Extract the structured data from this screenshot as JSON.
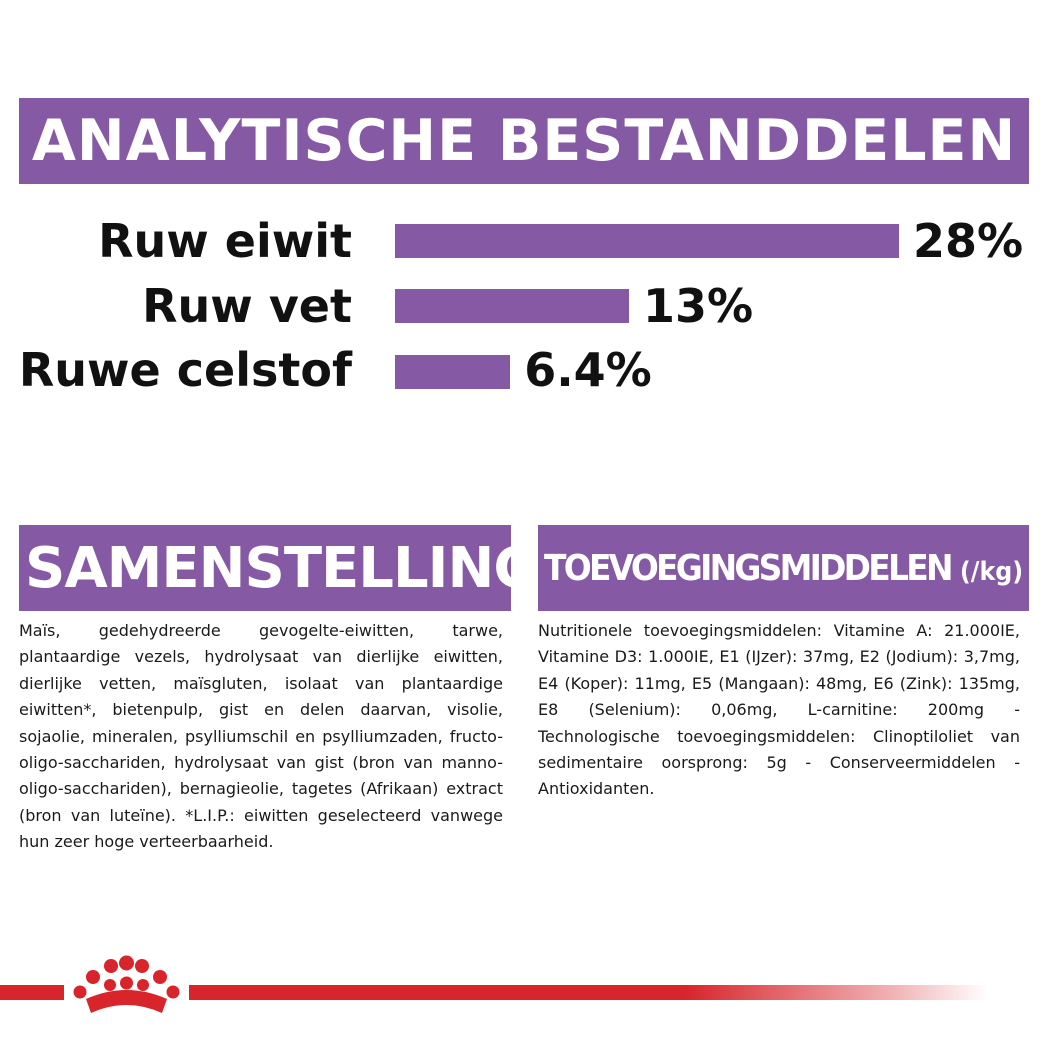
{
  "analytics": {
    "title": "ANALYTISCHE BESTANDDELEN",
    "rows": [
      {
        "label": "Ruw eiwit",
        "value": "28%",
        "percent": 28
      },
      {
        "label": "Ruw vet",
        "value": "13%",
        "percent": 13
      },
      {
        "label": "Ruwe celstof",
        "value": "6.4%",
        "percent": 6.4
      }
    ]
  },
  "samenstelling": {
    "title": "SAMENSTELLING",
    "text": "Maïs, gedehydreerde gevogelte-eiwitten, tarwe, plantaardige vezels, hydrolysaat van dierlijke eiwitten, dierlijke vetten, maïsgluten, isolaat van plantaardige eiwitten*, bietenpulp, gist en delen daarvan, visolie, sojaolie, mineralen, psylliumschil en psylliumzaden, fructo-oligo-sacchariden, hydrolysaat van gist (bron van manno-oligo-sacchariden), bernagieolie, tagetes (Afrikaan) extract (bron van luteïne). *L.I.P.: eiwitten geselecteerd vanwege hun zeer hoge verteerbaarheid."
  },
  "toevoegingsmiddelen": {
    "title": "TOEVOEGINGSMIDDELEN",
    "unit": "(/kg)",
    "text": "Nutritionele toevoegingsmiddelen: Vitamine A: 21.000IE, Vitamine D3: 1.000IE, E1 (IJzer): 37mg, E2 (Jodium): 3,7mg, E4 (Koper): 11mg, E5 (Mangaan): 48mg, E6 (Zink): 135mg, E8 (Selenium): 0,06mg, L-carnitine: 200mg - Technologische toevoegingsmiddelen: Clinoptiloliet van sedimentaire oorsprong: 5g - Conserveermiddelen - Antioxidanten."
  },
  "colors": {
    "accent": "#8559a3",
    "brand_red": "#d7252b"
  },
  "footer": {
    "logo_icon": "royal-canin-crown-icon"
  }
}
